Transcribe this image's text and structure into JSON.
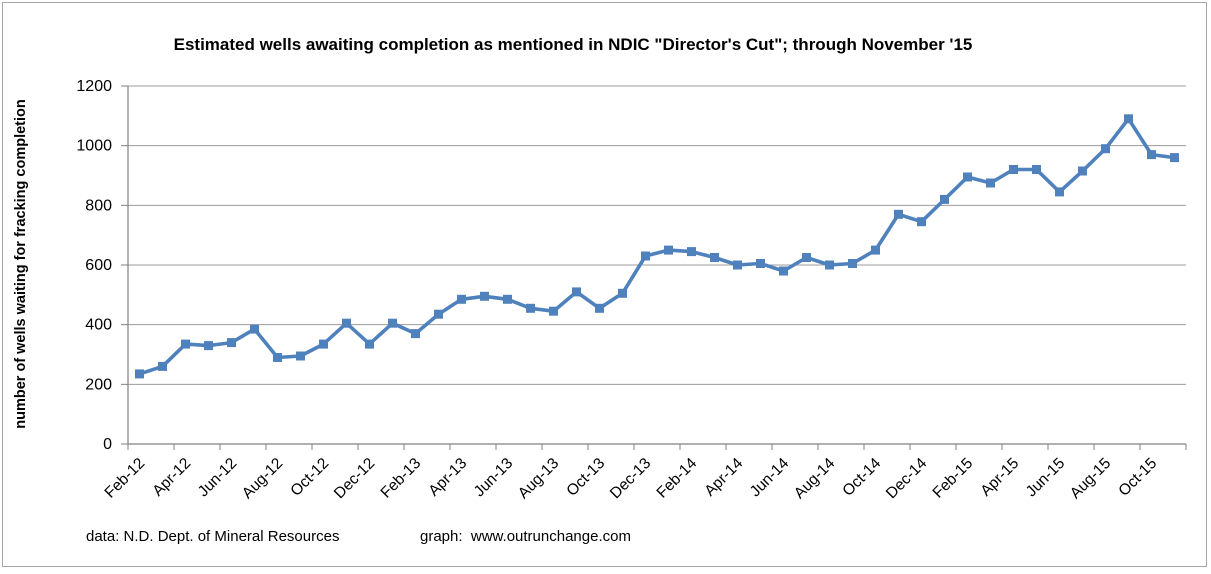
{
  "chart": {
    "title": "Estimated wells awaiting completion as mentioned in NDIC \"Director's Cut\"; through November '15",
    "y_axis_title": "number of wells waiting for fracking completion"
  },
  "footer": {
    "data_source": "data: N.D. Dept. of Mineral Resources",
    "graph_credit": "graph:  www.outrunchange.com"
  },
  "colors": {
    "line": "#4F81BD",
    "marker": "#4F81BD",
    "gridline": "#9c9c9c",
    "axis": "#808080",
    "text": "#000000",
    "frame": "#a6a6a6",
    "background": "#ffffff"
  },
  "chart_data": {
    "type": "line",
    "title": "Estimated wells awaiting completion as mentioned in NDIC \"Director's Cut\"; through November '15",
    "xlabel": "",
    "ylabel": "number of wells waiting for fracking completion",
    "ylim": [
      0,
      1200
    ],
    "yticks": [
      0,
      200,
      400,
      600,
      800,
      1000,
      1200
    ],
    "grid": "horizontal",
    "legend": "none",
    "marker": "square",
    "xtick_label_every": 2,
    "xtick_labels_shown": [
      "Feb-12",
      "Apr-12",
      "Jun-12",
      "Aug-12",
      "Oct-12",
      "Dec-12",
      "Feb-13",
      "Apr-13",
      "Jun-13",
      "Aug-13",
      "Oct-13",
      "Dec-13",
      "Feb-14",
      "Apr-14",
      "Jun-14",
      "Aug-14",
      "Oct-14",
      "Dec-14",
      "Feb-15",
      "Apr-15",
      "Jun-15",
      "Aug-15",
      "Oct-15"
    ],
    "categories": [
      "Feb-12",
      "Mar-12",
      "Apr-12",
      "May-12",
      "Jun-12",
      "Jul-12",
      "Aug-12",
      "Sep-12",
      "Oct-12",
      "Nov-12",
      "Dec-12",
      "Jan-13",
      "Feb-13",
      "Mar-13",
      "Apr-13",
      "May-13",
      "Jun-13",
      "Jul-13",
      "Aug-13",
      "Sep-13",
      "Oct-13",
      "Nov-13",
      "Dec-13",
      "Jan-14",
      "Feb-14",
      "Mar-14",
      "Apr-14",
      "May-14",
      "Jun-14",
      "Jul-14",
      "Aug-14",
      "Sep-14",
      "Oct-14",
      "Nov-14",
      "Dec-14",
      "Jan-15",
      "Feb-15",
      "Mar-15",
      "Apr-15",
      "May-15",
      "Jun-15",
      "Jul-15",
      "Aug-15",
      "Sep-15",
      "Oct-15",
      "Nov-15"
    ],
    "series": [
      {
        "name": "estimated wells awaiting completion",
        "values": [
          235,
          260,
          335,
          330,
          340,
          385,
          290,
          295,
          335,
          405,
          335,
          405,
          370,
          435,
          485,
          495,
          485,
          455,
          445,
          510,
          455,
          505,
          630,
          650,
          645,
          625,
          600,
          605,
          580,
          625,
          600,
          605,
          650,
          770,
          745,
          820,
          895,
          875,
          920,
          920,
          845,
          915,
          990,
          1090,
          970,
          960
        ]
      }
    ]
  }
}
